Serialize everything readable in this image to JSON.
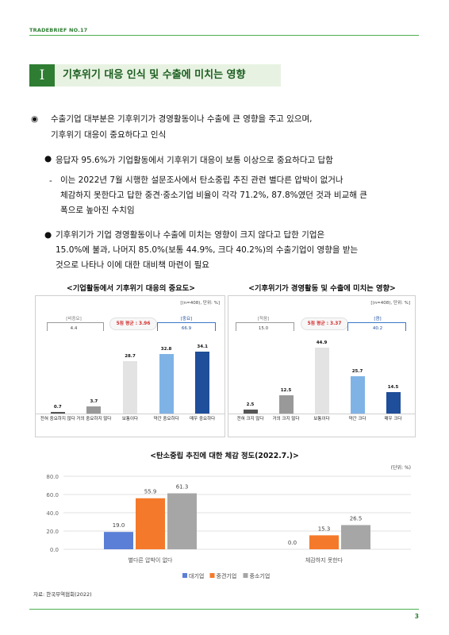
{
  "header": {
    "brand": "TRADEBRIEF",
    "issue": "NO.17"
  },
  "section": {
    "number": "I",
    "title": "기후위기 대응 인식 및 수출에 미치는 영향"
  },
  "main_point": {
    "marker": "◉",
    "line1": "수출기업 대부분은 기후위기가 경영활동이나 수출에 큰 영향을 주고 있으며,",
    "line2": "기후위기 대응이 중요하다고 인식"
  },
  "bullets": [
    {
      "marker": "●",
      "text": "응답자 95.6%가 기업활동에서 기후위기 대응이 보통 이상으로 중요하다고 답함"
    },
    {
      "marker": "-",
      "lines": [
        "이는 2022년 7월 시행한 설문조사에서 탄소중립 추진 관련 별다른 압박이 없거나",
        "체감하지 못한다고 답한 중견·중소기업 비율이 각각 71.2%, 87.8%였던 것과 비교해 큰",
        "폭으로 높아진 수치임"
      ]
    },
    {
      "marker": "●",
      "lines": [
        "기후위기가 기업 경영활동이나 수출에 미치는 영향이 크지 않다고 답한 기업은",
        "15.0%에 불과, 나머지 85.0%(보통 44.9%, 크다 40.2%)의 수출기업이 영향을 받는",
        "것으로 나타나 이에 대한 대비책 마련이 필요"
      ]
    }
  ],
  "chart_data": [
    {
      "type": "bar",
      "title": "<기업활동에서 기후위기 대응의 중요도>",
      "unit_note": "[(n=408), 단위: %]",
      "categories": [
        "전혀 중요하지 않다",
        "거의 중요하지 않다",
        "보통이다",
        "약간 중요하다",
        "매우 중요하다"
      ],
      "values": [
        0.7,
        3.7,
        28.7,
        32.8,
        34.1
      ],
      "value_labels": [
        "0.7",
        "3.7",
        "28.7",
        "32.8",
        "34.1"
      ],
      "bar_colors": [
        "#555555",
        "#999999",
        "#e3e3e3",
        "#7fb3e6",
        "#1f4e9a"
      ],
      "group_left": {
        "label": "[비중요]",
        "value": "4.4"
      },
      "group_right": {
        "label": "[중요]",
        "value": "66.9"
      },
      "avg_label": "5점 평균 : 3.96",
      "ylim": [
        0,
        40
      ]
    },
    {
      "type": "bar",
      "title": "<기후위기가 경영활동 및 수출에 미치는 영향>",
      "unit_note": "[(n=408), 단위: %]",
      "categories": [
        "전혀 크지 않다",
        "거의 크지 않다",
        "보통이다",
        "약간 크다",
        "매우 크다"
      ],
      "values": [
        2.5,
        12.5,
        44.9,
        25.7,
        14.5
      ],
      "value_labels": [
        "2.5",
        "12.5",
        "44.9",
        "25.7",
        "14.5"
      ],
      "bar_colors": [
        "#555555",
        "#999999",
        "#e3e3e3",
        "#7fb3e6",
        "#1f4e9a"
      ],
      "group_left": {
        "label": "[적음]",
        "value": "15.0"
      },
      "group_right": {
        "label": "[큼]",
        "value": "40.2"
      },
      "avg_label": "5점 평균 : 3.37",
      "ylim": [
        0,
        50
      ]
    },
    {
      "type": "bar",
      "title": "<탄소중립 추진에 대한 체감 정도(2022.7.)>",
      "unit_note": "(단위: %)",
      "categories": [
        "별다른 압박이 없다",
        "체감하지 못한다"
      ],
      "series": [
        {
          "name": "대기업",
          "values": [
            19.0,
            0.0
          ],
          "color": "#5b7fd6"
        },
        {
          "name": "중견기업",
          "values": [
            55.9,
            15.3
          ],
          "color": "#f5792a"
        },
        {
          "name": "중소기업",
          "values": [
            61.3,
            26.5
          ],
          "color": "#a6a6a6"
        }
      ],
      "value_labels": [
        [
          "19.0",
          "0.0"
        ],
        [
          "55.9",
          "15.3"
        ],
        [
          "61.3",
          "26.5"
        ]
      ],
      "yticks": [
        "0.0",
        "20.0",
        "40.0",
        "60.0",
        "80.0"
      ],
      "ylim": [
        0,
        80
      ]
    }
  ],
  "source": "자료: 한국무역협회(2022)",
  "page_number": "3"
}
